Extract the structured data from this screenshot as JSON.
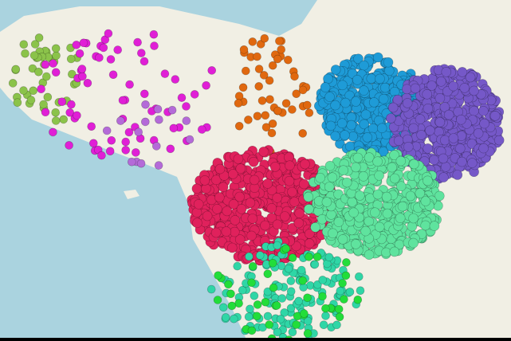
{
  "map": {
    "sea_color": "#aad3df",
    "land_color": "#f1efe4",
    "clusters": [
      {
        "name": "west-lime",
        "color": "#8bc34a",
        "density": "sparse"
      },
      {
        "name": "north-magenta",
        "color": "#e01fd6",
        "density": "sparse"
      },
      {
        "name": "central-lilac",
        "color": "#b46ad8",
        "density": "sparse"
      },
      {
        "name": "north-east-orange",
        "color": "#e0680f",
        "density": "sparse"
      },
      {
        "name": "east-blue",
        "color": "#1e9bd7",
        "density": "dense"
      },
      {
        "name": "far-east-purple",
        "color": "#7558c8",
        "density": "dense"
      },
      {
        "name": "south-crimson",
        "color": "#e0215c",
        "density": "dense"
      },
      {
        "name": "south-east-mint",
        "color": "#5fe39e",
        "density": "dense"
      },
      {
        "name": "south-teal",
        "color": "#2fd6a6",
        "density": "sparse"
      },
      {
        "name": "south-green",
        "color": "#22dd3a",
        "density": "sparse"
      }
    ]
  }
}
